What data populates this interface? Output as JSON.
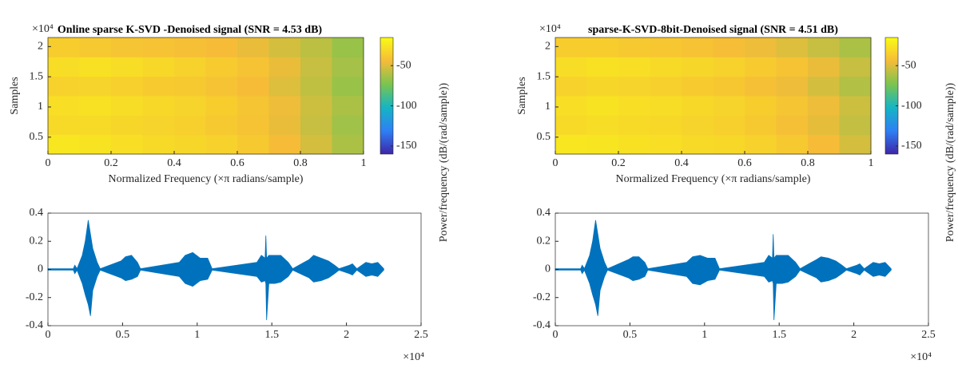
{
  "chart_data": [
    {
      "type": "heatmap",
      "title": "Online sparse K-SVD -Denoised signal (SNR = 4.53 dB)",
      "xlabel": "Normalized Frequency (×π radians/sample)",
      "ylabel": "Samples",
      "y_exponent": "×10⁴",
      "colorbar_label": "Power/frequency (dB/(rad/sample))",
      "xlim": [
        0,
        1
      ],
      "xticks": [
        0,
        0.2,
        0.4,
        0.6,
        0.8,
        1
      ],
      "ylim": [
        2200,
        21500
      ],
      "yticks": [
        {
          "value": 5000,
          "label": "0.5"
        },
        {
          "value": 10000,
          "label": "1"
        },
        {
          "value": 15000,
          "label": "1.5"
        },
        {
          "value": 20000,
          "label": "2"
        }
      ],
      "clim": [
        -160,
        -15
      ],
      "cticks": [
        -150,
        -100,
        -50
      ],
      "colormap": [
        "#3e26a8",
        "#2e80f5",
        "#15b5c3",
        "#7bc44f",
        "#f6bc38",
        "#f9fb15"
      ],
      "z": [
        [
          -24,
          -26,
          -28,
          -30,
          -32,
          -34,
          -38,
          -44,
          -52,
          -62
        ],
        [
          -30,
          -30,
          -32,
          -33,
          -35,
          -38,
          -41,
          -47,
          -55,
          -64
        ],
        [
          -28,
          -27,
          -29,
          -31,
          -33,
          -36,
          -40,
          -46,
          -54,
          -62
        ],
        [
          -34,
          -33,
          -35,
          -37,
          -38,
          -41,
          -44,
          -50,
          -57,
          -66
        ],
        [
          -29,
          -27,
          -29,
          -31,
          -34,
          -37,
          -41,
          -47,
          -55,
          -63
        ],
        [
          -36,
          -38,
          -40,
          -41,
          -42,
          -44,
          -47,
          -52,
          -58,
          -66
        ]
      ]
    },
    {
      "type": "heatmap",
      "title": "sparse-K-SVD-8bit-Denoised signal (SNR = 4.51 dB)",
      "xlabel": "Normalized Frequency (×π radians/sample)",
      "ylabel": "Samples",
      "y_exponent": "×10⁴",
      "colorbar_label": "Power/frequency (dB/(rad/sample))",
      "xlim": [
        0,
        1
      ],
      "xticks": [
        0,
        0.2,
        0.4,
        0.6,
        0.8,
        1
      ],
      "ylim": [
        2200,
        21500
      ],
      "yticks": [
        {
          "value": 5000,
          "label": "0.5"
        },
        {
          "value": 10000,
          "label": "1"
        },
        {
          "value": 15000,
          "label": "1.5"
        },
        {
          "value": 20000,
          "label": "2"
        }
      ],
      "clim": [
        -160,
        -15
      ],
      "cticks": [
        -150,
        -100,
        -50
      ],
      "colormap": [
        "#3e26a8",
        "#2e80f5",
        "#15b5c3",
        "#7bc44f",
        "#f6bc38",
        "#f9fb15"
      ],
      "z": [
        [
          -24,
          -25,
          -27,
          -28,
          -30,
          -31,
          -34,
          -38,
          -44,
          -52
        ],
        [
          -30,
          -29,
          -30,
          -31,
          -33,
          -35,
          -38,
          -42,
          -48,
          -56
        ],
        [
          -28,
          -26,
          -28,
          -29,
          -31,
          -33,
          -36,
          -40,
          -46,
          -54
        ],
        [
          -34,
          -32,
          -33,
          -35,
          -37,
          -39,
          -42,
          -46,
          -52,
          -60
        ],
        [
          -29,
          -27,
          -28,
          -30,
          -32,
          -34,
          -37,
          -41,
          -47,
          -55
        ],
        [
          -36,
          -36,
          -38,
          -39,
          -41,
          -43,
          -46,
          -50,
          -55,
          -62
        ]
      ]
    },
    {
      "type": "waveform",
      "x_exponent": "×10⁴",
      "color": "#0072bd",
      "xlim": [
        0,
        25000
      ],
      "xticks": [
        0,
        {
          "value": 5000,
          "label": "0.5"
        },
        {
          "value": 10000,
          "label": "1"
        },
        {
          "value": 15000,
          "label": "1.5"
        },
        {
          "value": 20000,
          "label": "2"
        },
        {
          "value": 25000,
          "label": "2.5"
        }
      ],
      "ylim": [
        -0.4,
        0.4
      ],
      "yticks": [
        -0.4,
        -0.2,
        0,
        0.2,
        0.4
      ],
      "x": [
        0,
        1700,
        1800,
        1950,
        2300,
        2500,
        2700,
        2850,
        3000,
        3300,
        3500,
        4900,
        5200,
        5600,
        6000,
        6200,
        8800,
        9200,
        9700,
        10200,
        10700,
        11000,
        14000,
        14300,
        14550,
        14600,
        14650,
        14800,
        15200,
        15600,
        16100,
        16400,
        17500,
        17800,
        18300,
        18800,
        19200,
        19500,
        20200,
        20400,
        20700,
        21300,
        21700,
        22100,
        22500
      ],
      "upper": [
        0.005,
        0.005,
        0.03,
        0.005,
        0.1,
        0.2,
        0.35,
        0.25,
        0.15,
        0.05,
        0.005,
        0.06,
        0.09,
        0.1,
        0.05,
        0.005,
        0.05,
        0.1,
        0.12,
        0.08,
        0.08,
        0.005,
        0.05,
        0.1,
        0.08,
        0.24,
        0.08,
        0.1,
        0.1,
        0.1,
        0.05,
        0.005,
        0.07,
        0.1,
        0.08,
        0.06,
        0.03,
        0.005,
        0.03,
        0.04,
        0.005,
        0.05,
        0.04,
        0.05,
        0.005
      ],
      "lower": [
        -0.005,
        -0.005,
        -0.03,
        -0.005,
        -0.1,
        -0.18,
        -0.25,
        -0.33,
        -0.15,
        -0.05,
        -0.005,
        -0.06,
        -0.08,
        -0.07,
        -0.05,
        -0.005,
        -0.05,
        -0.1,
        -0.12,
        -0.08,
        -0.07,
        -0.005,
        -0.05,
        -0.09,
        -0.08,
        -0.1,
        -0.36,
        -0.1,
        -0.1,
        -0.09,
        -0.05,
        -0.005,
        -0.06,
        -0.09,
        -0.08,
        -0.06,
        -0.03,
        -0.005,
        -0.03,
        -0.04,
        -0.005,
        -0.05,
        -0.04,
        -0.05,
        -0.005
      ]
    },
    {
      "type": "waveform",
      "x_exponent": "×10⁴",
      "color": "#0072bd",
      "xlim": [
        0,
        25000
      ],
      "xticks": [
        0,
        {
          "value": 5000,
          "label": "0.5"
        },
        {
          "value": 10000,
          "label": "1"
        },
        {
          "value": 15000,
          "label": "1.5"
        },
        {
          "value": 20000,
          "label": "2"
        },
        {
          "value": 25000,
          "label": "2.5"
        }
      ],
      "ylim": [
        -0.4,
        0.4
      ],
      "yticks": [
        -0.4,
        -0.2,
        0,
        0.2,
        0.4
      ],
      "x": [
        0,
        1700,
        1800,
        1950,
        2300,
        2500,
        2700,
        2850,
        3000,
        3300,
        3500,
        4900,
        5200,
        5600,
        6000,
        6200,
        8800,
        9200,
        9700,
        10200,
        10700,
        11000,
        14000,
        14300,
        14550,
        14600,
        14650,
        14800,
        15200,
        15600,
        16100,
        16400,
        17500,
        17800,
        18300,
        18800,
        19200,
        19500,
        20200,
        20400,
        20700,
        21300,
        21700,
        22100,
        22500
      ],
      "upper": [
        0.005,
        0.005,
        0.03,
        0.005,
        0.1,
        0.2,
        0.35,
        0.25,
        0.15,
        0.05,
        0.005,
        0.07,
        0.09,
        0.09,
        0.05,
        0.005,
        0.05,
        0.09,
        0.1,
        0.08,
        0.08,
        0.005,
        0.05,
        0.1,
        0.08,
        0.25,
        0.08,
        0.1,
        0.1,
        0.1,
        0.05,
        0.005,
        0.07,
        0.09,
        0.08,
        0.06,
        0.03,
        0.005,
        0.03,
        0.04,
        0.005,
        0.05,
        0.04,
        0.05,
        0.005
      ],
      "lower": [
        -0.005,
        -0.005,
        -0.03,
        -0.005,
        -0.1,
        -0.18,
        -0.25,
        -0.33,
        -0.15,
        -0.05,
        -0.005,
        -0.06,
        -0.08,
        -0.07,
        -0.05,
        -0.005,
        -0.05,
        -0.1,
        -0.11,
        -0.08,
        -0.07,
        -0.005,
        -0.05,
        -0.09,
        -0.08,
        -0.1,
        -0.36,
        -0.1,
        -0.1,
        -0.09,
        -0.05,
        -0.005,
        -0.06,
        -0.09,
        -0.08,
        -0.06,
        -0.03,
        -0.005,
        -0.03,
        -0.04,
        -0.005,
        -0.05,
        -0.04,
        -0.05,
        -0.005
      ]
    }
  ]
}
